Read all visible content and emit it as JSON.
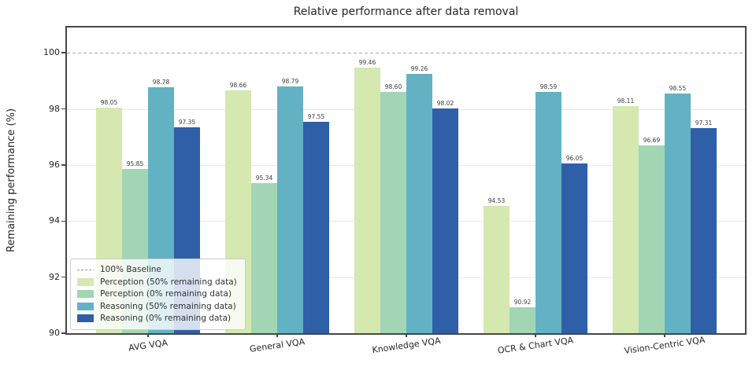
{
  "chart_data": {
    "type": "bar",
    "title": "Relative performance after data removal",
    "xlabel": "",
    "ylabel": "Remaining performance (%)",
    "ylim": [
      90,
      100.9
    ],
    "yticks": [
      90,
      92,
      94,
      96,
      98,
      100
    ],
    "grid": "horizontal",
    "legend_position": "lower left",
    "value_label_decimals": 2,
    "baseline": {
      "value": 100,
      "label": "100% Baseline",
      "style": "dashed",
      "color": "#a9a9a9"
    },
    "categories": [
      "AVG VQA",
      "General VQA",
      "Knowledge VQA",
      "OCR & Chart VQA",
      "Vision-Centric VQA"
    ],
    "series": [
      {
        "name": "Perception (50% remaining data)",
        "color": "#d4e8b0",
        "values": [
          98.05,
          98.66,
          99.46,
          94.53,
          98.11
        ]
      },
      {
        "name": "Perception (0% remaining data)",
        "color": "#a2d5b3",
        "values": [
          95.85,
          95.34,
          98.6,
          90.92,
          96.69
        ]
      },
      {
        "name": "Reasoning (50% remaining data)",
        "color": "#62b2c3",
        "values": [
          98.78,
          98.79,
          99.26,
          98.59,
          98.55
        ]
      },
      {
        "name": "Reasoning (0% remaining data)",
        "color": "#2f5fa7",
        "values": [
          97.35,
          97.55,
          98.02,
          96.05,
          97.31
        ]
      }
    ],
    "colors": {
      "spine": "#474747",
      "gridline": "#e8e8e8",
      "text": "#262626"
    }
  }
}
